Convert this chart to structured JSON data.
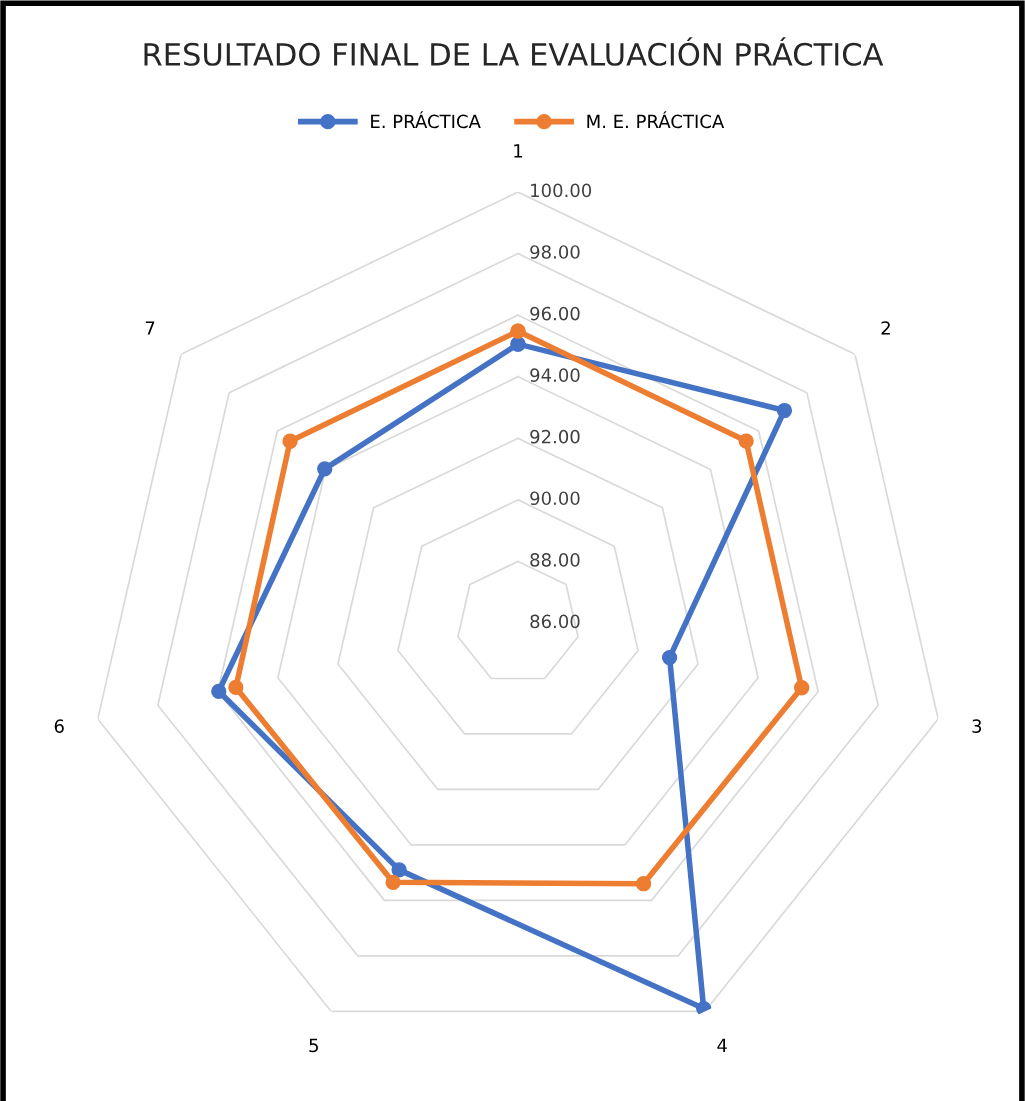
{
  "chart_data": {
    "type": "radar",
    "title": "RESULTADO FINAL DE LA EVALUACIÓN PRÁCTICA",
    "categories": [
      "1",
      "2",
      "3",
      "4",
      "5",
      "6",
      "7"
    ],
    "series": [
      {
        "name": "E. PRÁCTICA",
        "color": "#4472c4",
        "values": [
          95.06,
          97.07,
          91.05,
          99.9,
          94.9,
          95.97,
          94.03
        ]
      },
      {
        "name": "M. E. PRÁCTICA",
        "color": "#ed7d31",
        "values": [
          95.48,
          95.48,
          95.45,
          95.4,
          95.35,
          95.4,
          95.47
        ]
      }
    ],
    "ylim": [
      86,
      100
    ],
    "yticks": [
      {
        "value": 86,
        "label": "86.00"
      },
      {
        "value": 88,
        "label": "88.00"
      },
      {
        "value": 90,
        "label": "90.00"
      },
      {
        "value": 92,
        "label": "92.00"
      },
      {
        "value": 94,
        "label": "94.00"
      },
      {
        "value": 96,
        "label": "96.00"
      },
      {
        "value": 98,
        "label": "98.00"
      },
      {
        "value": 100,
        "label": "100.00"
      }
    ],
    "grid": true,
    "legend": "top",
    "marker": "circle",
    "line_style": "solid"
  }
}
